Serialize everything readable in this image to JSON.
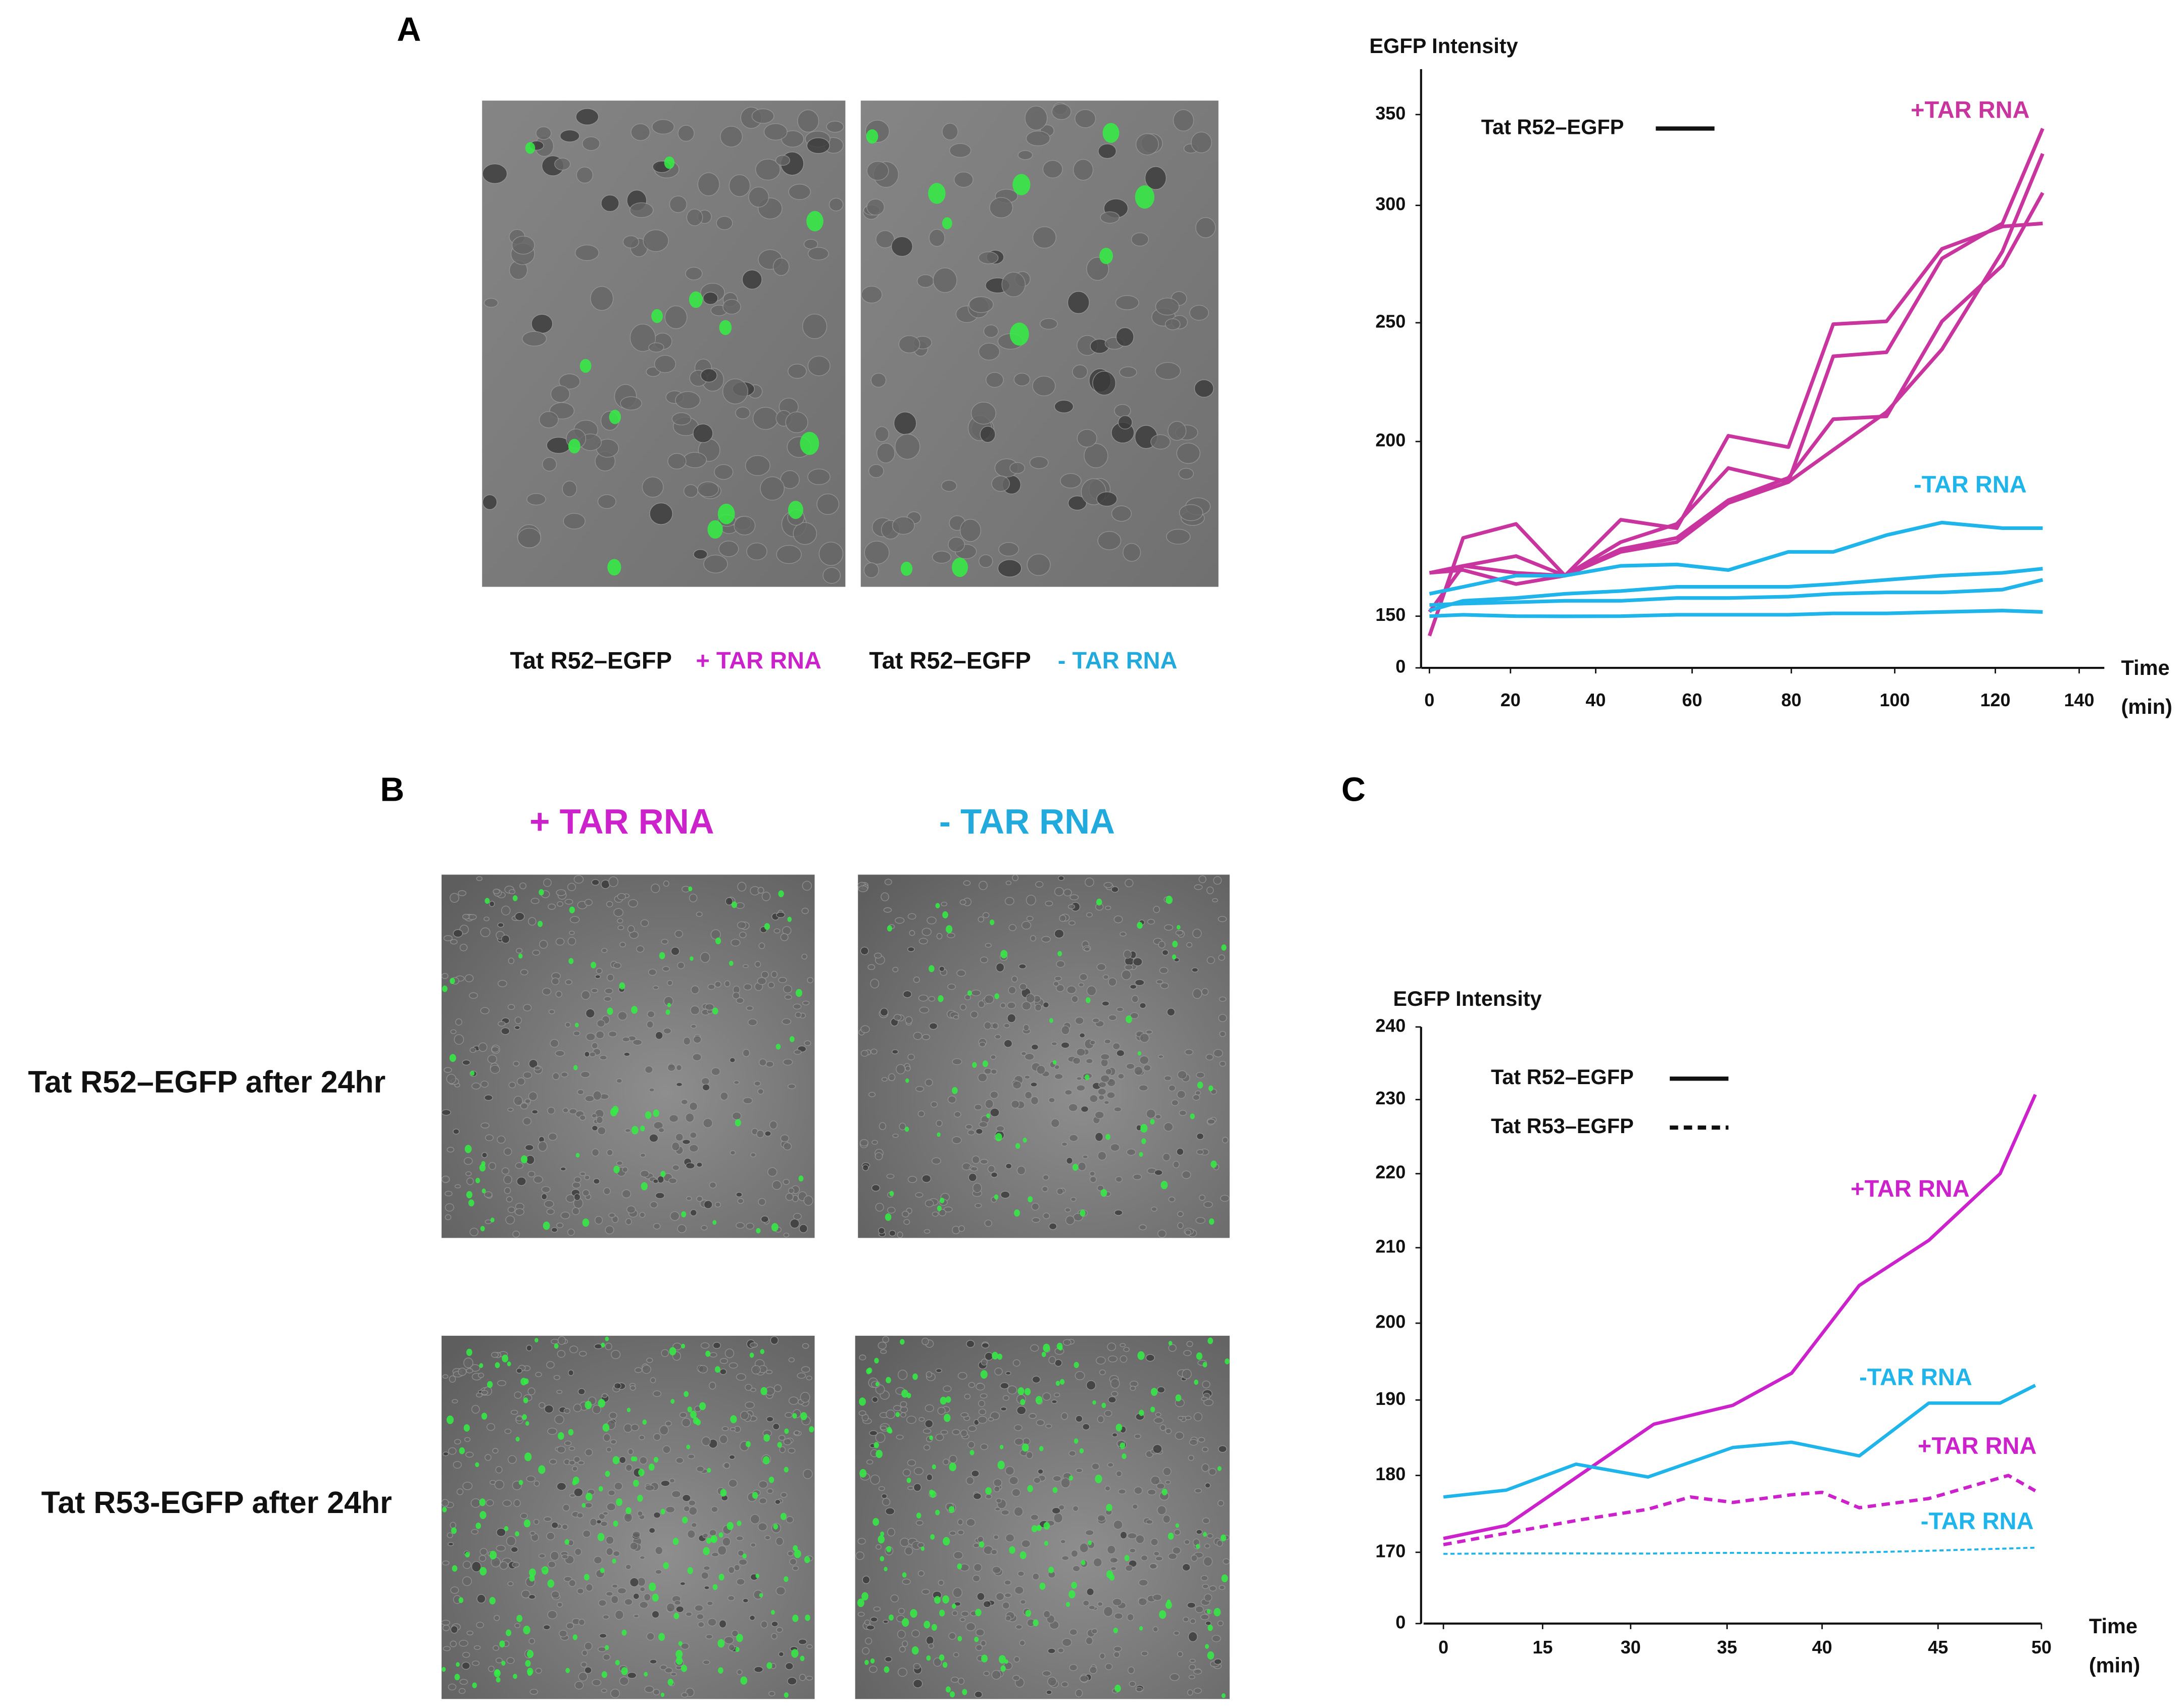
{
  "panel_labels": [
    "A",
    "B",
    "C"
  ],
  "panel_a_captions": [
    {
      "construct": "Tat R52–EGFP",
      "condition": "+ TAR RNA"
    },
    {
      "construct": "Tat R52–EGFP",
      "condition": "- TAR RNA"
    }
  ],
  "panel_b": {
    "columns": [
      "+ TAR RNA",
      "- TAR RNA"
    ],
    "rows": [
      "Tat R52–EGFP after 24hr",
      "Tat R53-EGFP after 24hr"
    ]
  },
  "chart_data": [
    {
      "type": "line",
      "ylabel": "EGFP Intensity",
      "xlabel": "Time",
      "xunit": "(min)",
      "xlim": [
        -2,
        146
      ],
      "ylim": [
        0,
        375
      ],
      "xticks": [
        0,
        20,
        40,
        60,
        80,
        100,
        120,
        140
      ],
      "yticks": [
        0,
        150,
        200,
        250,
        300,
        350
      ],
      "legend": [
        {
          "label": "Tat R52–EGFP",
          "style": "solid"
        }
      ],
      "x": [
        0,
        8.3,
        21.3,
        32.8,
        45.2,
        56.8,
        67.3,
        79.4,
        88.1,
        98.4,
        109.4,
        121.7,
        131.3
      ],
      "series": [
        {
          "name": "+TAR RNA",
          "color": "#c8359f",
          "style": "solid",
          "replicates": [
            [
              93,
              172.4,
              176.4,
              161.6,
              177.6,
              175.2,
              202.4,
              198.4,
              249.4,
              250.6,
              281.5,
              291,
              292.3
            ],
            [
              151.2,
              164.4,
              167.2,
              161.6,
              171.2,
              176.4,
              192.4,
              188.4,
              235.9,
              237.6,
              277.4,
              292.3,
              342.3
            ],
            [
              162.4,
              163.2,
              159.2,
              161.6,
              169.2,
              172.4,
              183.2,
              189.6,
              209.4,
              210.6,
              250.6,
              274.4,
              306.9
            ],
            [
              162.4,
              164.4,
              162.4,
              161.6,
              168.4,
              171.2,
              182.4,
              188.4,
              197.6,
              212.4,
              238.8,
              280.4,
              328.5
            ]
          ]
        },
        {
          "name": "-TAR RNA",
          "color": "#1fb5ea",
          "style": "solid",
          "replicates": [
            [
              156.4,
              158.4,
              161.6,
              161.6,
              164.4,
              164.8,
              163.2,
              168.4,
              168.4,
              173.2,
              176.8,
              175.2,
              175.2
            ],
            [
              151.6,
              154.4,
              155.2,
              156.4,
              157.2,
              158.4,
              158.4,
              158.4,
              159.2,
              160.4,
              161.6,
              162.4,
              163.6
            ],
            [
              153.2,
              153.6,
              154,
              154.4,
              154.4,
              155.2,
              155.2,
              155.6,
              156.4,
              156.8,
              156.8,
              157.6,
              160.4
            ],
            [
              150,
              150.4,
              150,
              149.6,
              150,
              150.4,
              150.4,
              150.4,
              150.8,
              150.8,
              151.2,
              151.6,
              151.2
            ]
          ]
        }
      ]
    },
    {
      "type": "line",
      "ylabel": "EGFP Intensity",
      "xlabel": "Time",
      "xunit": "(min)",
      "xlim": [
        -3,
        50
      ],
      "ylim": [
        0,
        240
      ],
      "xticks": [
        0,
        15,
        30,
        35,
        40,
        45,
        50
      ],
      "yticks": [
        0,
        170,
        180,
        190,
        200,
        210,
        220,
        230,
        240
      ],
      "legend": [
        {
          "label": "Tat R52–EGFP",
          "style": "solid"
        },
        {
          "label": "Tat R53–EGFP",
          "style": "dotted"
        }
      ],
      "series": [
        {
          "name": "+TAR RNA",
          "color": "#cc22cc",
          "style": "solid",
          "x": [
            0,
            9.5,
            31.2,
            35.3,
            38.4,
            41.6,
            44.6,
            48,
            49.7
          ],
          "values": [
            171.8,
            173.5,
            186.8,
            189.3,
            193.5,
            205,
            211,
            220,
            230.7
          ]
        },
        {
          "name": "-TAR RNA",
          "color": "#1fb5ea",
          "style": "solid",
          "x": [
            0,
            9.5,
            20.7,
            30.9,
            35.3,
            38.4,
            41.6,
            44.6,
            48,
            49.7
          ],
          "values": [
            177.2,
            178.1,
            181.5,
            179.8,
            183.7,
            184.4,
            182.6,
            189.6,
            189.6,
            191.9
          ]
        },
        {
          "name": "+TAR RNA",
          "color": "#cc22cc",
          "style": "dotted",
          "x": [
            0,
            9.5,
            21.2,
            30.9,
            33.1,
            35.3,
            38.4,
            40,
            41.6,
            44.6,
            48.4,
            49.7
          ],
          "values": [
            171,
            172.5,
            174.2,
            175.6,
            177.2,
            176.5,
            177.5,
            177.8,
            175.8,
            177,
            180,
            178
          ]
        },
        {
          "name": "-TAR RNA",
          "color": "#1fb5ea",
          "style": "dotted",
          "x": [
            0,
            9.5,
            21.2,
            30.9,
            33.1,
            35.3,
            38.4,
            41.6,
            44.6,
            49.7
          ],
          "values": [
            166.3,
            167.4,
            167.4,
            167,
            168.2,
            168.7,
            168.2,
            169.6,
            170.2,
            170.6
          ]
        }
      ]
    }
  ]
}
